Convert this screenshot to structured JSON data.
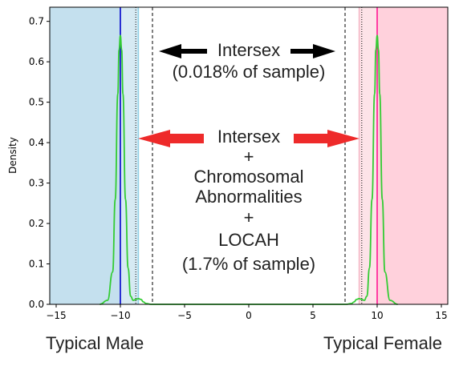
{
  "chart_data": {
    "type": "area",
    "title": "",
    "xlabel": "",
    "ylabel": "Density",
    "xlim": [
      -15.5,
      15.5
    ],
    "ylim": [
      0,
      0.735
    ],
    "xticks": [
      -15,
      -10,
      -5,
      0,
      5,
      10,
      15
    ],
    "yticks": [
      0.0,
      0.1,
      0.2,
      0.3,
      0.4,
      0.5,
      0.6,
      0.7
    ],
    "grid": false,
    "regions": [
      {
        "name": "male-region",
        "x": [
          -15.5,
          -10
        ],
        "color": "#c4e0ee"
      },
      {
        "name": "male-inner-region",
        "x": [
          -10,
          -8.6
        ],
        "color": "#d6eaf3"
      },
      {
        "name": "female-inner-region",
        "x": [
          8.6,
          10
        ],
        "color": "#fde3e8"
      },
      {
        "name": "female-region",
        "x": [
          10,
          15.5
        ],
        "color": "#ffd1dc"
      }
    ],
    "vlines": [
      {
        "name": "male-mean-line",
        "x": -10,
        "color": "#0000cc",
        "style": "solid"
      },
      {
        "name": "male-light-line",
        "x": -8.6,
        "color": "#8fd0e6",
        "style": "solid"
      },
      {
        "name": "male-dotted-line",
        "x": -8.8,
        "color": "#000000",
        "style": "dotted"
      },
      {
        "name": "male-dashed-line",
        "x": -7.5,
        "color": "#000000",
        "style": "dashed"
      },
      {
        "name": "female-dashed-line",
        "x": 7.5,
        "color": "#000000",
        "style": "dashed"
      },
      {
        "name": "female-dotted-line",
        "x": 8.8,
        "color": "#000000",
        "style": "dotted"
      },
      {
        "name": "female-light-line",
        "x": 8.6,
        "color": "#f4b8c6",
        "style": "solid"
      },
      {
        "name": "female-mean-line",
        "x": 10,
        "color": "#ff1493",
        "style": "solid"
      }
    ],
    "density": {
      "color": "#33cc33",
      "x": [
        -11.6,
        -11.0,
        -10.6,
        -10.4,
        -10.2,
        -10.1,
        -10.0,
        -9.9,
        -9.8,
        -9.6,
        -9.4,
        -9.2,
        -9.0,
        -8.8,
        -8.6,
        -8.4,
        -8.2,
        -8.0,
        -7.6,
        0,
        7.6,
        8.0,
        8.2,
        8.4,
        8.6,
        8.8,
        9.0,
        9.2,
        9.4,
        9.6,
        9.8,
        9.9,
        10.0,
        10.1,
        10.2,
        10.4,
        10.6,
        11.0,
        11.6
      ],
      "y": [
        0.0,
        0.01,
        0.08,
        0.26,
        0.52,
        0.63,
        0.665,
        0.63,
        0.52,
        0.26,
        0.09,
        0.02,
        0.01,
        0.012,
        0.014,
        0.012,
        0.006,
        0.002,
        0.0,
        0.0,
        0.0,
        0.002,
        0.006,
        0.012,
        0.014,
        0.012,
        0.01,
        0.02,
        0.09,
        0.26,
        0.52,
        0.63,
        0.665,
        0.63,
        0.52,
        0.26,
        0.08,
        0.01,
        0.0
      ]
    }
  },
  "annotations": {
    "black_line1": "Intersex",
    "black_line2": "(0.018% of sample)",
    "red_line1": "Intersex",
    "red_line2": "+",
    "red_line3": "Chromosomal",
    "red_line4": "Abnormalities",
    "red_line5": "+",
    "red_line6": "LOCAH",
    "red_line7": "(1.7% of sample)"
  },
  "labels": {
    "left": "Typical Male",
    "right": "Typical Female"
  },
  "colors": {
    "black_arrow": "#000000",
    "red_arrow": "#ee2a2a"
  }
}
